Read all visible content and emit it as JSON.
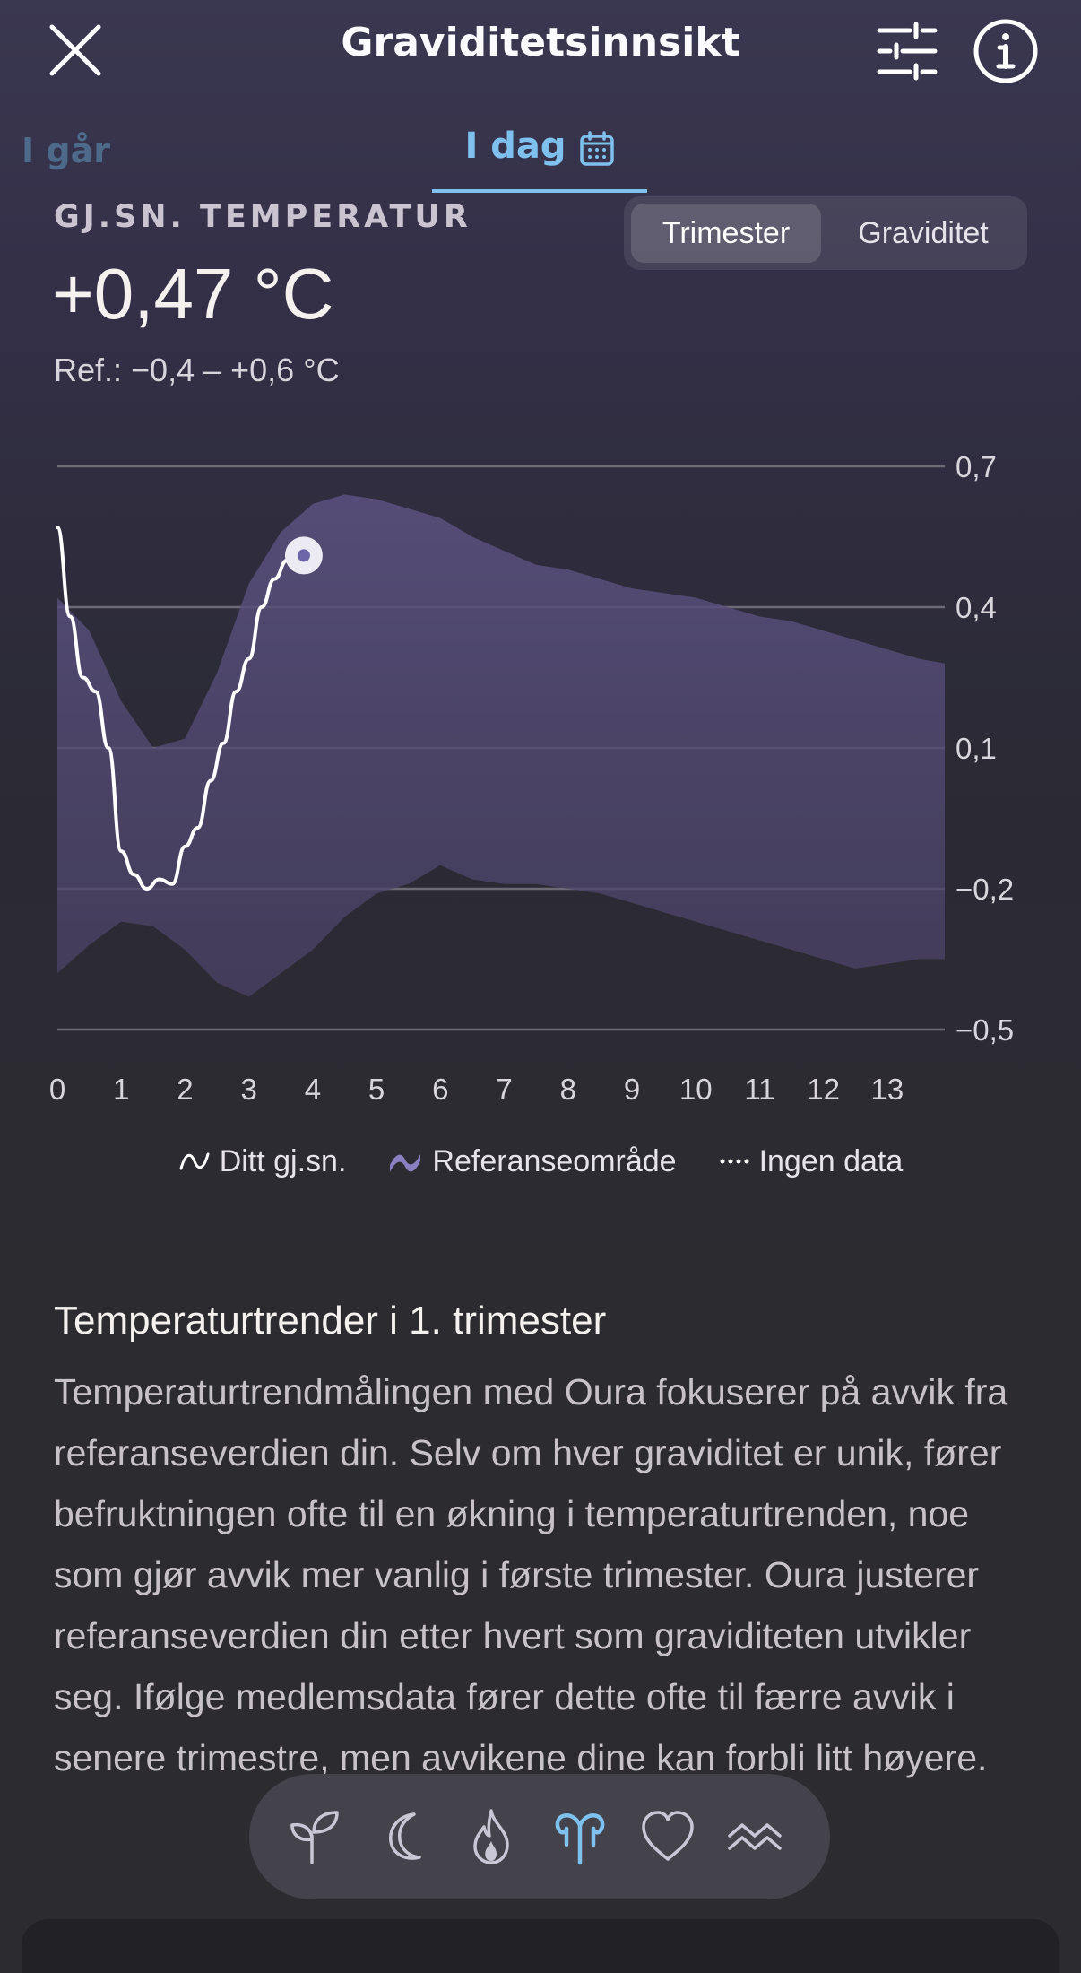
{
  "header": {
    "title": "Graviditetsinnsikt",
    "close_icon": "close-icon",
    "filters_icon": "sliders-icon",
    "info_icon": "info-icon"
  },
  "tabs": {
    "prev_label": "I går",
    "today_label": "I dag",
    "accent_color": "#7ec0ee"
  },
  "metric": {
    "label": "GJ.SN. TEMPERATUR",
    "value": "+0,47 °C",
    "ref": "Ref.: −0,4 – +0,6 °C"
  },
  "segment": {
    "options": [
      "Trimester",
      "Graviditet"
    ],
    "selected": "Trimester"
  },
  "chart_data": {
    "type": "line",
    "y_ticks": [
      "0,7",
      "0,4",
      "0,1",
      "−0,2",
      "−0,5"
    ],
    "y_values": [
      0.7,
      0.4,
      0.1,
      -0.2,
      -0.5
    ],
    "x_ticks": [
      "0",
      "1",
      "2",
      "3",
      "4",
      "5",
      "6",
      "7",
      "8",
      "9",
      "10",
      "11",
      "12",
      "13"
    ],
    "ylim": [
      -0.5,
      0.7
    ],
    "xlim": [
      0,
      13.9
    ],
    "grid": true,
    "legend": "bottom",
    "series": [
      {
        "name": "Ditt gj.sn.",
        "color": "#ffffff",
        "x": [
          0,
          0.2,
          0.4,
          0.6,
          0.8,
          1.0,
          1.2,
          1.4,
          1.6,
          1.8,
          2.0,
          2.2,
          2.4,
          2.6,
          2.8,
          3.0,
          3.2,
          3.4,
          3.6,
          3.86
        ],
        "values": [
          0.57,
          0.38,
          0.25,
          0.22,
          0.1,
          -0.12,
          -0.17,
          -0.2,
          -0.18,
          -0.19,
          -0.11,
          -0.07,
          0.03,
          0.11,
          0.22,
          0.29,
          0.4,
          0.46,
          0.5,
          0.51
        ]
      },
      {
        "name": "Referanseområde",
        "color": "#7a6fa8",
        "x": [
          0,
          0.5,
          1.0,
          1.5,
          2.0,
          2.5,
          3.0,
          3.5,
          4.0,
          4.5,
          5.0,
          5.5,
          6.0,
          6.5,
          7.0,
          7.5,
          8.0,
          8.5,
          9.0,
          9.5,
          10.0,
          10.5,
          11.0,
          11.5,
          12.0,
          12.5,
          13.0,
          13.5,
          13.9
        ],
        "upper": [
          0.42,
          0.35,
          0.2,
          0.1,
          0.12,
          0.26,
          0.45,
          0.56,
          0.62,
          0.64,
          0.63,
          0.61,
          0.59,
          0.55,
          0.52,
          0.49,
          0.48,
          0.46,
          0.44,
          0.43,
          0.42,
          0.4,
          0.38,
          0.37,
          0.35,
          0.33,
          0.31,
          0.29,
          0.28
        ],
        "lower": [
          -0.38,
          -0.32,
          -0.27,
          -0.28,
          -0.33,
          -0.4,
          -0.43,
          -0.38,
          -0.33,
          -0.26,
          -0.21,
          -0.19,
          -0.15,
          -0.18,
          -0.19,
          -0.19,
          -0.2,
          -0.21,
          -0.23,
          -0.25,
          -0.27,
          -0.29,
          -0.31,
          -0.33,
          -0.35,
          -0.37,
          -0.36,
          -0.35,
          -0.35
        ]
      }
    ],
    "current_point": {
      "x": 3.86,
      "y": 0.51
    }
  },
  "legend": {
    "your_avg": "Ditt gj.sn.",
    "reference": "Referanseområde",
    "no_data": "Ingen data"
  },
  "article": {
    "title": "Temperaturtrender i 1. trimester",
    "body": "Temperaturtrendmålingen med Oura fokuserer på avvik fra referanseverdien din. Selv om hver graviditet er unik, fører befruktningen ofte til en økning i temperaturtrenden, noe som gjør avvik mer vanlig i første trimester. Oura justerer referanseverdien din etter hvert som graviditeten utvikler seg. Ifølge medlemsdata fører dette ofte til færre avvik i senere trimestre, men avvikene dine kan forbli litt høyere."
  },
  "bottom_nav": {
    "items": [
      "sprout-icon",
      "moon-icon",
      "flame-icon",
      "pregnancy-icon",
      "heart-icon",
      "waves-icon"
    ],
    "active": "pregnancy-icon"
  }
}
